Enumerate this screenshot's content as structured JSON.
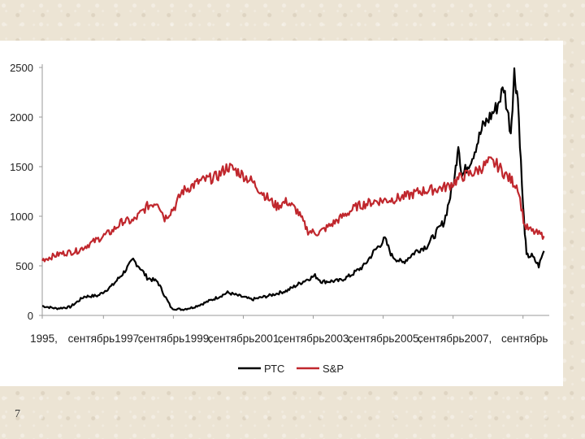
{
  "slide": {
    "page_number": "7"
  },
  "chart_data": {
    "type": "line",
    "title": "",
    "xlabel": "",
    "ylabel": "",
    "ylim": [
      0,
      2500
    ],
    "yticks": [
      0,
      500,
      1000,
      1500,
      2000,
      2500
    ],
    "xlim": [
      1995.0,
      2009.5
    ],
    "xtick_positions": [
      1995.0,
      1996.75,
      1998.75,
      2000.75,
      2002.75,
      2004.75,
      2006.75,
      2008.75
    ],
    "xtick_labels": [
      "1995,",
      "сентябрь1997,",
      "сентябрь1999,",
      "сентябрь2001,",
      "сентябрь2003,",
      "сентябрь2005,",
      "сентябрь2007,",
      "сентябрь"
    ],
    "grid": false,
    "legend_position": "bottom",
    "series": [
      {
        "name": "РТС",
        "color": "#000000",
        "points": [
          [
            1995.0,
            95
          ],
          [
            1995.4,
            70
          ],
          [
            1995.8,
            85
          ],
          [
            1996.2,
            190
          ],
          [
            1996.6,
            200
          ],
          [
            1997.0,
            300
          ],
          [
            1997.3,
            420
          ],
          [
            1997.6,
            560
          ],
          [
            1997.8,
            480
          ],
          [
            1998.0,
            380
          ],
          [
            1998.3,
            340
          ],
          [
            1998.5,
            200
          ],
          [
            1998.7,
            70
          ],
          [
            1999.0,
            60
          ],
          [
            1999.3,
            80
          ],
          [
            1999.6,
            120
          ],
          [
            2000.0,
            180
          ],
          [
            2000.3,
            230
          ],
          [
            2000.6,
            200
          ],
          [
            2001.0,
            160
          ],
          [
            2001.5,
            200
          ],
          [
            2002.0,
            250
          ],
          [
            2002.5,
            350
          ],
          [
            2002.8,
            400
          ],
          [
            2003.0,
            340
          ],
          [
            2003.5,
            350
          ],
          [
            2003.8,
            400
          ],
          [
            2004.2,
            500
          ],
          [
            2004.5,
            650
          ],
          [
            2004.8,
            770
          ],
          [
            2005.0,
            600
          ],
          [
            2005.3,
            530
          ],
          [
            2005.7,
            650
          ],
          [
            2006.0,
            700
          ],
          [
            2006.5,
            950
          ],
          [
            2006.8,
            1400
          ],
          [
            2006.9,
            1750
          ],
          [
            2007.0,
            1400
          ],
          [
            2007.3,
            1600
          ],
          [
            2007.6,
            1900
          ],
          [
            2008.0,
            2100
          ],
          [
            2008.2,
            2300
          ],
          [
            2008.4,
            1850
          ],
          [
            2008.5,
            2450
          ],
          [
            2008.6,
            2200
          ],
          [
            2008.75,
            1100
          ],
          [
            2008.85,
            600
          ],
          [
            2009.0,
            600
          ],
          [
            2009.2,
            500
          ],
          [
            2009.35,
            650
          ]
        ]
      },
      {
        "name": "S&P",
        "color": "#c0272d",
        "points": [
          [
            1995.0,
            560
          ],
          [
            1995.5,
            620
          ],
          [
            1996.0,
            650
          ],
          [
            1996.5,
            750
          ],
          [
            1997.0,
            850
          ],
          [
            1997.3,
            950
          ],
          [
            1997.6,
            950
          ],
          [
            1998.0,
            1100
          ],
          [
            1998.3,
            1150
          ],
          [
            1998.5,
            980
          ],
          [
            1998.8,
            1100
          ],
          [
            1999.0,
            1250
          ],
          [
            1999.5,
            1350
          ],
          [
            2000.0,
            1400
          ],
          [
            2000.3,
            1500
          ],
          [
            2000.6,
            1450
          ],
          [
            2001.0,
            1350
          ],
          [
            2001.4,
            1200
          ],
          [
            2001.7,
            1100
          ],
          [
            2002.0,
            1150
          ],
          [
            2002.3,
            1050
          ],
          [
            2002.6,
            850
          ],
          [
            2002.9,
            830
          ],
          [
            2003.2,
            900
          ],
          [
            2003.6,
            1000
          ],
          [
            2004.0,
            1100
          ],
          [
            2004.5,
            1150
          ],
          [
            2005.0,
            1170
          ],
          [
            2005.4,
            1200
          ],
          [
            2005.8,
            1250
          ],
          [
            2006.2,
            1270
          ],
          [
            2006.6,
            1300
          ],
          [
            2007.0,
            1400
          ],
          [
            2007.4,
            1450
          ],
          [
            2007.8,
            1550
          ],
          [
            2008.0,
            1520
          ],
          [
            2008.3,
            1400
          ],
          [
            2008.6,
            1300
          ],
          [
            2008.8,
            900
          ],
          [
            2009.0,
            850
          ],
          [
            2009.35,
            800
          ]
        ]
      }
    ]
  }
}
